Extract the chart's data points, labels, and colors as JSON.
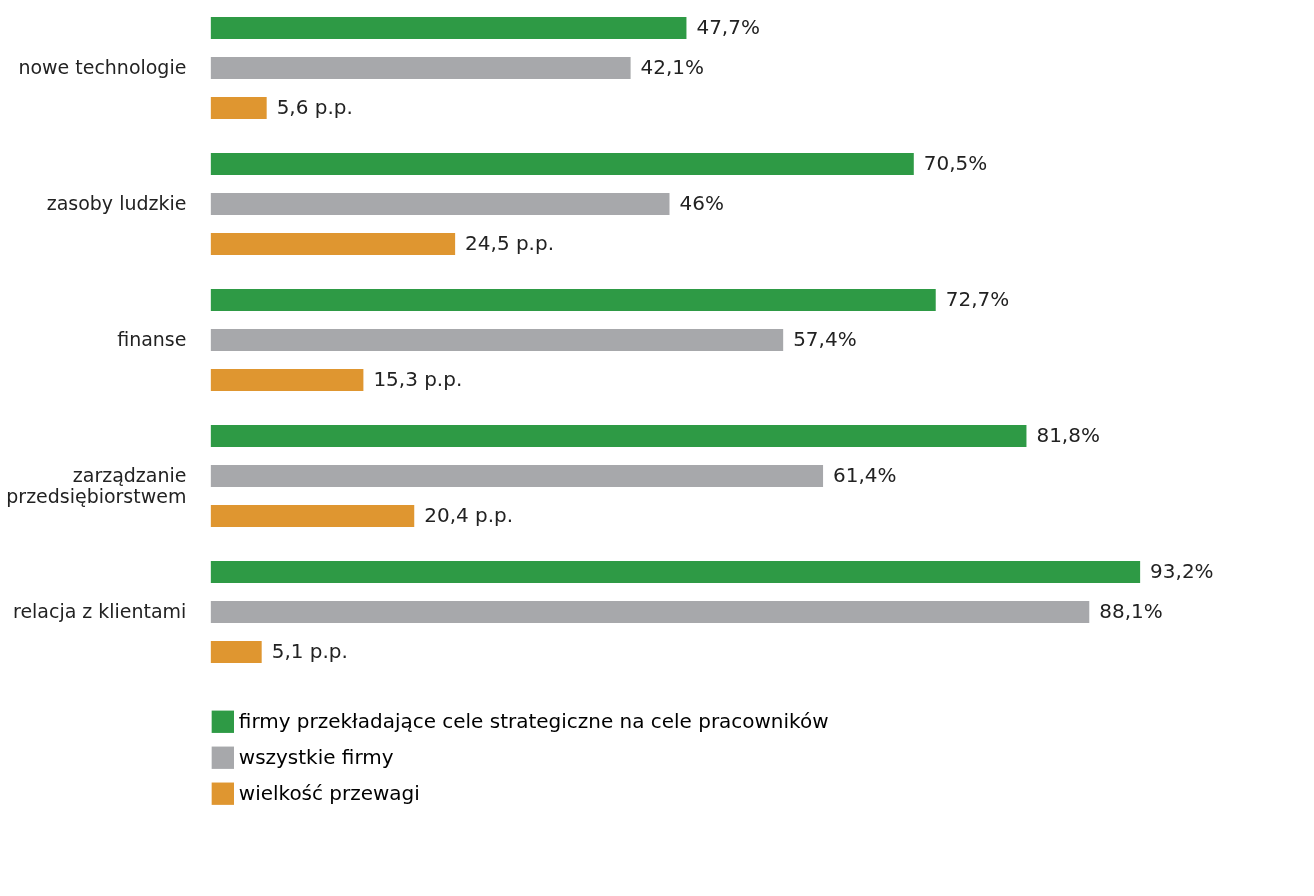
{
  "chart_data": {
    "type": "bar",
    "orientation": "horizontal",
    "categories": [
      "nowe technologie",
      "zasoby ludzkie",
      "finanse",
      "zarządzanie przedsiębiorstwem",
      "relacja z klientami"
    ],
    "series": [
      {
        "name": "firmy przekładające cele strategiczne na cele pracowników",
        "color": "#2e9a45",
        "values": [
          47.7,
          70.5,
          72.7,
          81.8,
          93.2
        ],
        "value_labels": [
          "47,7%",
          "70,5%",
          "72,7%",
          "81,8%",
          "93,2%"
        ]
      },
      {
        "name": "wszystkie firmy",
        "color": "#a7a8ab",
        "values": [
          42.1,
          46,
          57.4,
          61.4,
          88.1
        ],
        "value_labels": [
          "42,1%",
          "46%",
          "57,4%",
          "61,4%",
          "88,1%"
        ]
      },
      {
        "name": "wielkość przewagi",
        "color": "#df9630",
        "values": [
          5.6,
          24.5,
          15.3,
          20.4,
          5.1
        ],
        "value_labels": [
          "5,6 p.p.",
          "24,5 p.p.",
          "15,3 p.p.",
          "20,4 p.p.",
          "5,1 p.p."
        ]
      }
    ],
    "legend": "bottom",
    "grid": false,
    "tick_labels": "y"
  }
}
